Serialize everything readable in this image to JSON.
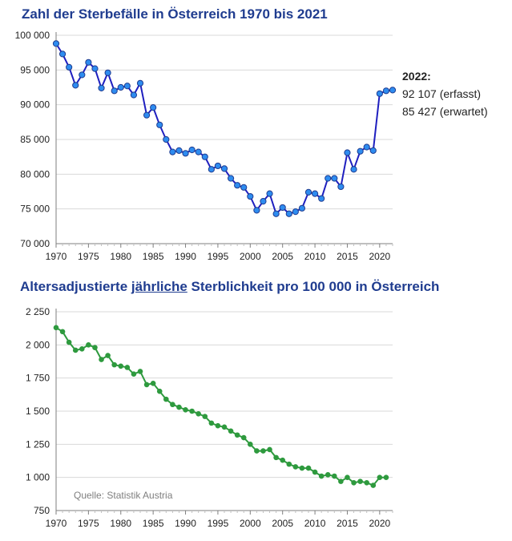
{
  "chart_data": [
    {
      "type": "line",
      "title": "Zahl der Sterbefälle in Österreich 1970 bis 2021",
      "xlabel": "",
      "ylabel": "",
      "xlim": [
        1970,
        2022
      ],
      "ylim": [
        70000,
        100000
      ],
      "x_ticks": [
        "1970",
        "1975",
        "1980",
        "1985",
        "1990",
        "1995",
        "2000",
        "2005",
        "2010",
        "2015",
        "2020"
      ],
      "y_ticks": [
        "70 000",
        "75 000",
        "80 000",
        "85 000",
        "90 000",
        "95 000",
        "100 000"
      ],
      "grid": "horizontal",
      "line_color": "#1f1fbf",
      "marker_color": "#2e8cf0",
      "series": [
        {
          "x": [
            1970,
            1971,
            1972,
            1973,
            1974,
            1975,
            1976,
            1977,
            1978,
            1979,
            1980,
            1981,
            1982,
            1983,
            1984,
            1985,
            1986,
            1987,
            1988,
            1989,
            1990,
            1991,
            1992,
            1993,
            1994,
            1995,
            1996,
            1997,
            1998,
            1999,
            2000,
            2001,
            2002,
            2003,
            2004,
            2005,
            2006,
            2007,
            2008,
            2009,
            2010,
            2011,
            2012,
            2013,
            2014,
            2015,
            2016,
            2017,
            2018,
            2019,
            2020,
            2021,
            2022
          ],
          "values": [
            98800,
            97300,
            95400,
            92800,
            94300,
            96100,
            95200,
            92400,
            94600,
            92000,
            92500,
            92700,
            91400,
            93100,
            88500,
            89600,
            87100,
            85000,
            83200,
            83400,
            83000,
            83500,
            83200,
            82500,
            80700,
            81200,
            80800,
            79400,
            78400,
            78100,
            76800,
            74800,
            76100,
            77200,
            74300,
            75200,
            74300,
            74600,
            75100,
            77400,
            77200,
            76500,
            79400,
            79400,
            78200,
            83100,
            80700,
            83300,
            83900,
            83400,
            91600,
            92000,
            92107
          ]
        }
      ],
      "annotation": {
        "year_label": "2022:",
        "line1": "92 107 (erfasst)",
        "line2": "85 427 (erwartet)"
      }
    },
    {
      "type": "line",
      "title_parts": [
        "Altersadjustierte ",
        "jährliche",
        " Sterblichkeit pro 100 000 in Österreich"
      ],
      "xlabel": "",
      "ylabel": "",
      "xlim": [
        1970,
        2021
      ],
      "ylim": [
        750,
        2250
      ],
      "x_ticks": [
        "1970",
        "1975",
        "1980",
        "1985",
        "1990",
        "1995",
        "2000",
        "2005",
        "2010",
        "2015",
        "2020"
      ],
      "y_ticks": [
        "750",
        "1 000",
        "1 250",
        "1 500",
        "1 750",
        "2 000",
        "2 250"
      ],
      "grid": "horizontal",
      "line_color": "#2e9a3e",
      "marker_color": "#2e9a3e",
      "source": "Quelle: Statistik Austria",
      "series": [
        {
          "x": [
            1970,
            1971,
            1972,
            1973,
            1974,
            1975,
            1976,
            1977,
            1978,
            1979,
            1980,
            1981,
            1982,
            1983,
            1984,
            1985,
            1986,
            1987,
            1988,
            1989,
            1990,
            1991,
            1992,
            1993,
            1994,
            1995,
            1996,
            1997,
            1998,
            1999,
            2000,
            2001,
            2002,
            2003,
            2004,
            2005,
            2006,
            2007,
            2008,
            2009,
            2010,
            2011,
            2012,
            2013,
            2014,
            2015,
            2016,
            2017,
            2018,
            2019,
            2020,
            2021
          ],
          "values": [
            2130,
            2100,
            2020,
            1960,
            1970,
            2000,
            1980,
            1890,
            1920,
            1850,
            1840,
            1830,
            1780,
            1800,
            1700,
            1710,
            1650,
            1590,
            1550,
            1530,
            1510,
            1500,
            1480,
            1460,
            1410,
            1390,
            1380,
            1350,
            1320,
            1300,
            1250,
            1200,
            1200,
            1210,
            1150,
            1130,
            1100,
            1080,
            1070,
            1070,
            1040,
            1010,
            1020,
            1010,
            970,
            1000,
            960,
            970,
            960,
            940,
            1000,
            1000
          ]
        }
      ]
    }
  ]
}
